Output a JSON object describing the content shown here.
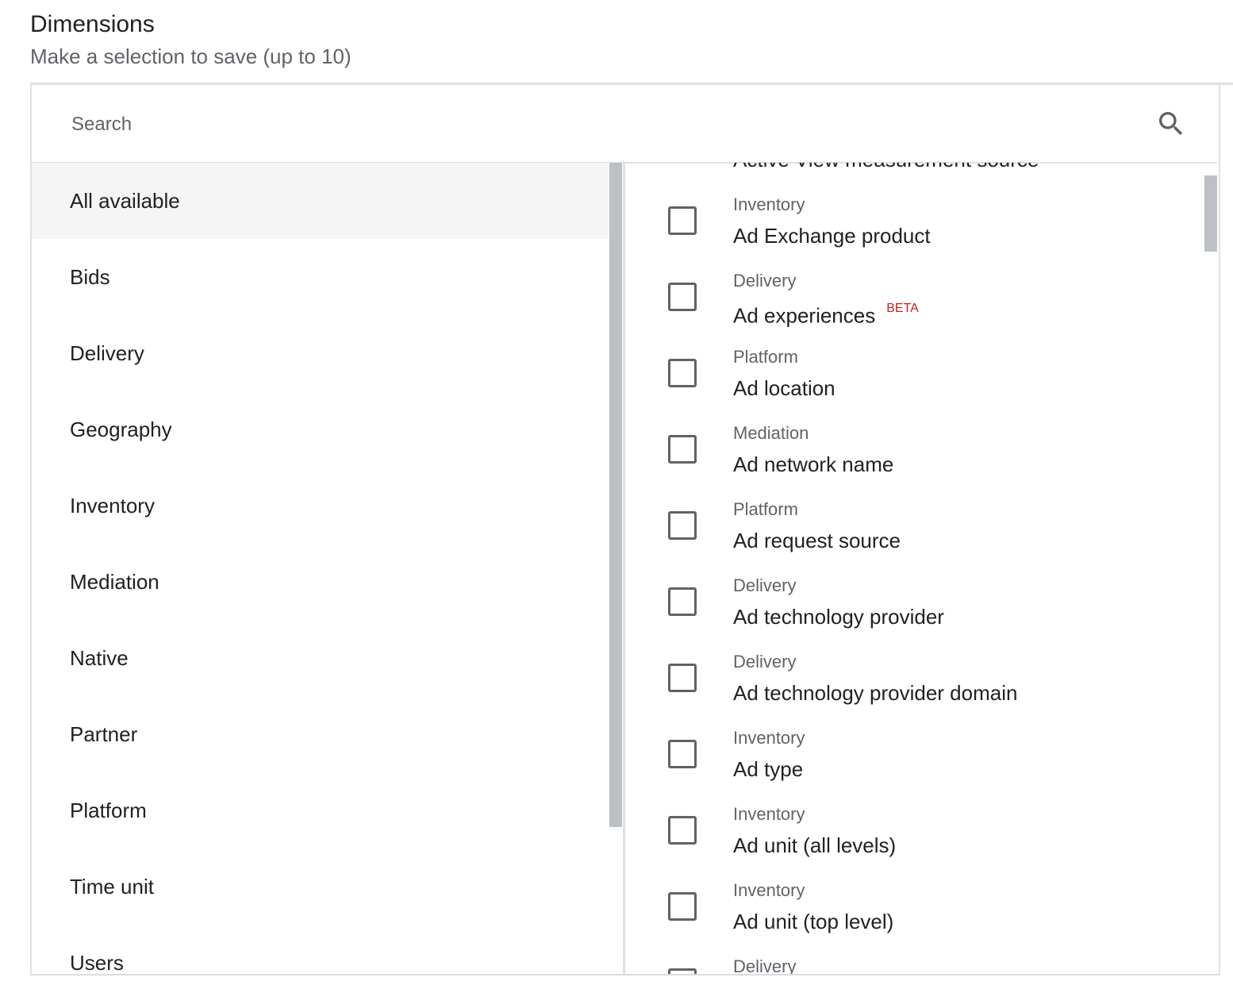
{
  "header": {
    "title": "Dimensions",
    "subtitle": "Make a selection to save (up to 10)"
  },
  "search": {
    "placeholder": "Search",
    "icon": "search-icon"
  },
  "categories": [
    "All available",
    "Bids",
    "Delivery",
    "Geography",
    "Inventory",
    "Mediation",
    "Native",
    "Partner",
    "Platform",
    "Time unit",
    "Users"
  ],
  "selected_category": "All available",
  "dimensions": [
    {
      "category": "",
      "name": "Active View measurement source"
    },
    {
      "category": "Inventory",
      "name": "Ad Exchange product"
    },
    {
      "category": "Delivery",
      "name": "Ad experiences",
      "badge": "BETA"
    },
    {
      "category": "Platform",
      "name": "Ad location"
    },
    {
      "category": "Mediation",
      "name": "Ad network name"
    },
    {
      "category": "Platform",
      "name": "Ad request source"
    },
    {
      "category": "Delivery",
      "name": "Ad technology provider"
    },
    {
      "category": "Delivery",
      "name": "Ad technology provider domain"
    },
    {
      "category": "Inventory",
      "name": "Ad type"
    },
    {
      "category": "Inventory",
      "name": "Ad unit (all levels)"
    },
    {
      "category": "Inventory",
      "name": "Ad unit (top level)"
    },
    {
      "category": "Delivery",
      "name": ""
    }
  ],
  "colors": {
    "beta": "#c5221f",
    "scrollbar": "#bdc1c6",
    "selected_bg": "#f5f5f5"
  }
}
